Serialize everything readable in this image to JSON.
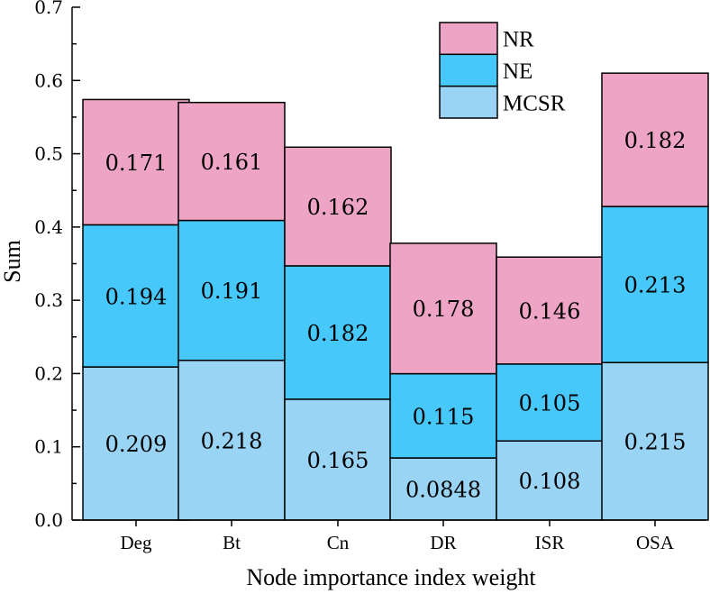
{
  "chart_data": {
    "type": "bar",
    "stacked": true,
    "title": "",
    "xlabel": "Node importance index weight",
    "ylabel": "Sum",
    "ylim": [
      0,
      0.7
    ],
    "yticks": [
      "0.0",
      "0.1",
      "0.2",
      "0.3",
      "0.4",
      "0.5",
      "0.6",
      "0.7"
    ],
    "categories": [
      "Deg",
      "Bt",
      "Cn",
      "DR",
      "ISR",
      "OSA"
    ],
    "series": [
      {
        "name": "MCSR",
        "color": "#99d4f5",
        "values": [
          0.209,
          0.218,
          0.165,
          0.0848,
          0.108,
          0.215
        ],
        "labels": [
          "0.209",
          "0.218",
          "0.165",
          "0.0848",
          "0.108",
          "0.215"
        ]
      },
      {
        "name": "NE",
        "color": "#46c8fb",
        "values": [
          0.194,
          0.191,
          0.182,
          0.115,
          0.105,
          0.213
        ],
        "labels": [
          "0.194",
          "0.191",
          "0.182",
          "0.115",
          "0.105",
          "0.213"
        ]
      },
      {
        "name": "NR",
        "color": "#eea4c4",
        "values": [
          0.171,
          0.161,
          0.162,
          0.178,
          0.146,
          0.182
        ],
        "labels": [
          "0.171",
          "0.161",
          "0.162",
          "0.178",
          "0.146",
          "0.182"
        ]
      }
    ],
    "legend": {
      "position": "top-right",
      "order": [
        "NR",
        "NE",
        "MCSR"
      ]
    }
  }
}
